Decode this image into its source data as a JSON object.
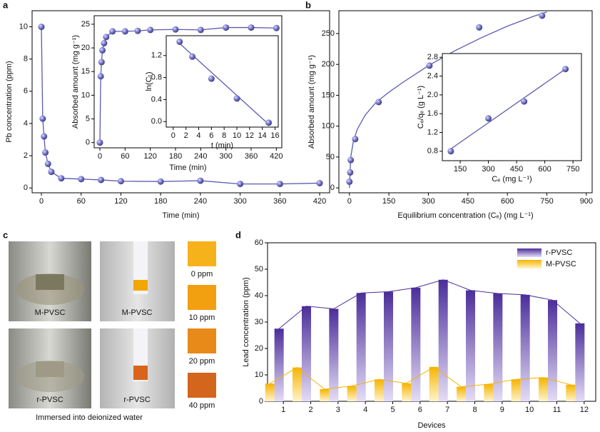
{
  "chart_data": [
    {
      "panel": "a",
      "type": "line",
      "xlabel": "Time (min)",
      "ylabel": "Pb concentration (ppm)",
      "x": [
        0,
        2,
        4,
        6,
        10,
        15,
        30,
        60,
        90,
        120,
        180,
        240,
        300,
        360,
        420
      ],
      "y": [
        10,
        4.3,
        3.2,
        2.2,
        1.5,
        1.0,
        0.6,
        0.55,
        0.5,
        0.42,
        0.4,
        0.45,
        0.25,
        0.25,
        0.3
      ],
      "color": "#5a5ab0",
      "xlim": [
        -14,
        435
      ],
      "ylim": [
        -0.3,
        11
      ],
      "xticks": [
        0,
        60,
        120,
        180,
        240,
        300,
        360,
        420
      ],
      "yticks": [
        0,
        2,
        4,
        6,
        8,
        10
      ]
    },
    {
      "type": "line",
      "xlabel": "Time (min)",
      "ylabel": "Absorbed amount (mg g⁻¹)",
      "x": [
        0,
        2,
        4,
        6,
        10,
        15,
        30,
        60,
        90,
        120,
        180,
        240,
        300,
        360,
        420
      ],
      "y": [
        0,
        14,
        17,
        19.5,
        21,
        22.3,
        23.5,
        23.5,
        23.6,
        23.8,
        23.9,
        23.8,
        24.3,
        24.3,
        24.2
      ],
      "color": "#5a5ab0",
      "xlim": [
        -13.6,
        433
      ],
      "ylim": [
        -1.1,
        26.8
      ],
      "xticks": [
        0,
        60,
        120,
        180,
        240,
        300,
        360,
        420
      ],
      "yticks": [
        0,
        5,
        10,
        15,
        20,
        25
      ]
    },
    {
      "type": "scatter",
      "xlabel": "t (min)",
      "ylabel": "ln(Cₜ)",
      "x": [
        1,
        3,
        6,
        10,
        15
      ],
      "y": [
        1.45,
        1.18,
        0.78,
        0.42,
        -0.02
      ],
      "fit": {
        "x": [
          1,
          15
        ],
        "y": [
          1.42,
          -0.05
        ]
      },
      "color": "#5a5ab0",
      "xlim": [
        -1.1,
        16.5
      ],
      "ylim": [
        -0.1,
        1.56
      ],
      "xticks": [
        0,
        2,
        4,
        6,
        8,
        10,
        12,
        14,
        16
      ],
      "yticks": [
        {
          "value": 0,
          "label": "0.0"
        },
        0.4,
        0.8,
        1.2
      ]
    },
    {
      "panel": "b",
      "type": "scatter",
      "xlabel": "Equilibrium concentration (Cₑ) (mg L⁻¹)",
      "ylabel": "Absorbed amount (mg g⁻¹)",
      "x": [
        0,
        3,
        5,
        22,
        111,
        304,
        493,
        732
      ],
      "y": [
        10,
        25,
        45,
        79,
        139,
        198,
        260,
        279
      ],
      "fit": {
        "x": [
          0,
          5,
          15,
          30,
          60,
          100,
          150,
          200,
          300,
          400,
          500,
          600,
          700,
          750
        ],
        "y": [
          0,
          50,
          75,
          95,
          118,
          138,
          155,
          170,
          198,
          222,
          243,
          262,
          278,
          285
        ]
      },
      "color": "#5a5ab0",
      "xlim": [
        -40,
        922
      ],
      "ylim": [
        -8,
        287
      ],
      "xticks": [
        0,
        150,
        300,
        450,
        600,
        750,
        900
      ],
      "yticks": [
        0,
        50,
        100,
        150,
        200,
        250
      ]
    },
    {
      "type": "scatter",
      "xlabel": "Cₑ (mg L⁻¹)",
      "ylabel": "Cₑ/qₑ (g L⁻¹)",
      "x": [
        100,
        300,
        490,
        710
      ],
      "y": [
        0.8,
        1.5,
        1.86,
        2.55
      ],
      "fit": {
        "x": [
          100,
          710
        ],
        "y": [
          0.85,
          2.55
        ]
      },
      "color": "#5a5ab0",
      "xlim": [
        55,
        795
      ],
      "ylim": [
        0.6,
        2.88
      ],
      "xticks": [
        150,
        300,
        450,
        600,
        750
      ],
      "yticks": [
        0.8,
        1.2,
        1.6,
        {
          "value": 2,
          "label": "2.0"
        },
        2.4,
        2.8
      ]
    },
    {
      "panel": "d",
      "type": "bar",
      "xlabel": "Devices",
      "ylabel": "Lead concentration (ppm)",
      "categories": [
        "1",
        "2",
        "3",
        "4",
        "5",
        "6",
        "7",
        "8",
        "9",
        "10",
        "11",
        "12"
      ],
      "series": [
        {
          "name": "r-PVSC",
          "color": "#4b2e9a",
          "values": [
            27.5,
            36,
            35,
            41,
            41.5,
            43,
            46,
            42,
            40.8,
            40.3,
            38.3,
            29.5
          ]
        },
        {
          "name": "M-PVSC",
          "color": "#f5b400",
          "values": [
            6.7,
            12.8,
            4.6,
            5.8,
            8.3,
            6.8,
            13,
            5.5,
            6.5,
            8.3,
            9,
            6.3
          ]
        }
      ],
      "legend": "upper right",
      "ylim": [
        0,
        60
      ],
      "yticks": [
        0,
        10,
        20,
        30,
        40,
        50,
        60
      ]
    }
  ],
  "panel_c": {
    "panel": "c",
    "beaker_labels": [
      "M-PVSC",
      "r-PVSC"
    ],
    "strip_labels": [
      "M-PVSC",
      "r-PVSC"
    ],
    "swatch_labels": [
      "0 ppm",
      "10 ppm",
      "20 ppm",
      "40 ppm"
    ],
    "caption": "Immersed into deionized water"
  }
}
